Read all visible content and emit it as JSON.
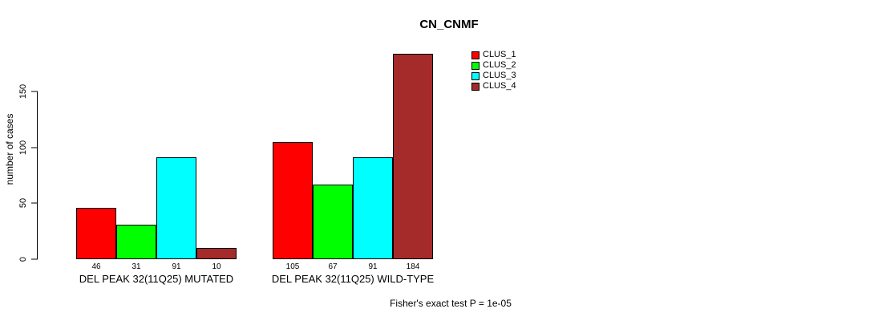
{
  "figure": {
    "title": "CN_CNMF",
    "ylabel": "number of cases",
    "footnote": "Fisher's exact test P = 1e-05"
  },
  "chart_data": {
    "type": "bar",
    "title": "CN_CNMF",
    "xlabel": "",
    "ylabel": "number of cases",
    "ylim": [
      0,
      190
    ],
    "yticks": [
      0,
      50,
      100,
      150
    ],
    "grid": false,
    "legend_position": "upper-right-inside",
    "categories": [
      "DEL PEAK 32(11Q25) MUTATED",
      "DEL PEAK 32(11Q25) WILD-TYPE"
    ],
    "series": [
      {
        "name": "CLUS_1",
        "color": "#ff0000",
        "values": [
          46,
          105
        ]
      },
      {
        "name": "CLUS_2",
        "color": "#00ff00",
        "values": [
          31,
          67
        ]
      },
      {
        "name": "CLUS_3",
        "color": "#00ffff",
        "values": [
          91,
          91
        ]
      },
      {
        "name": "CLUS_4",
        "color": "#a52a2a",
        "values": [
          10,
          184
        ]
      }
    ],
    "bar_value_labels": [
      [
        46,
        31,
        91,
        10
      ],
      [
        105,
        67,
        91,
        184
      ]
    ],
    "annotation": "Fisher's exact test P = 1e-05"
  }
}
